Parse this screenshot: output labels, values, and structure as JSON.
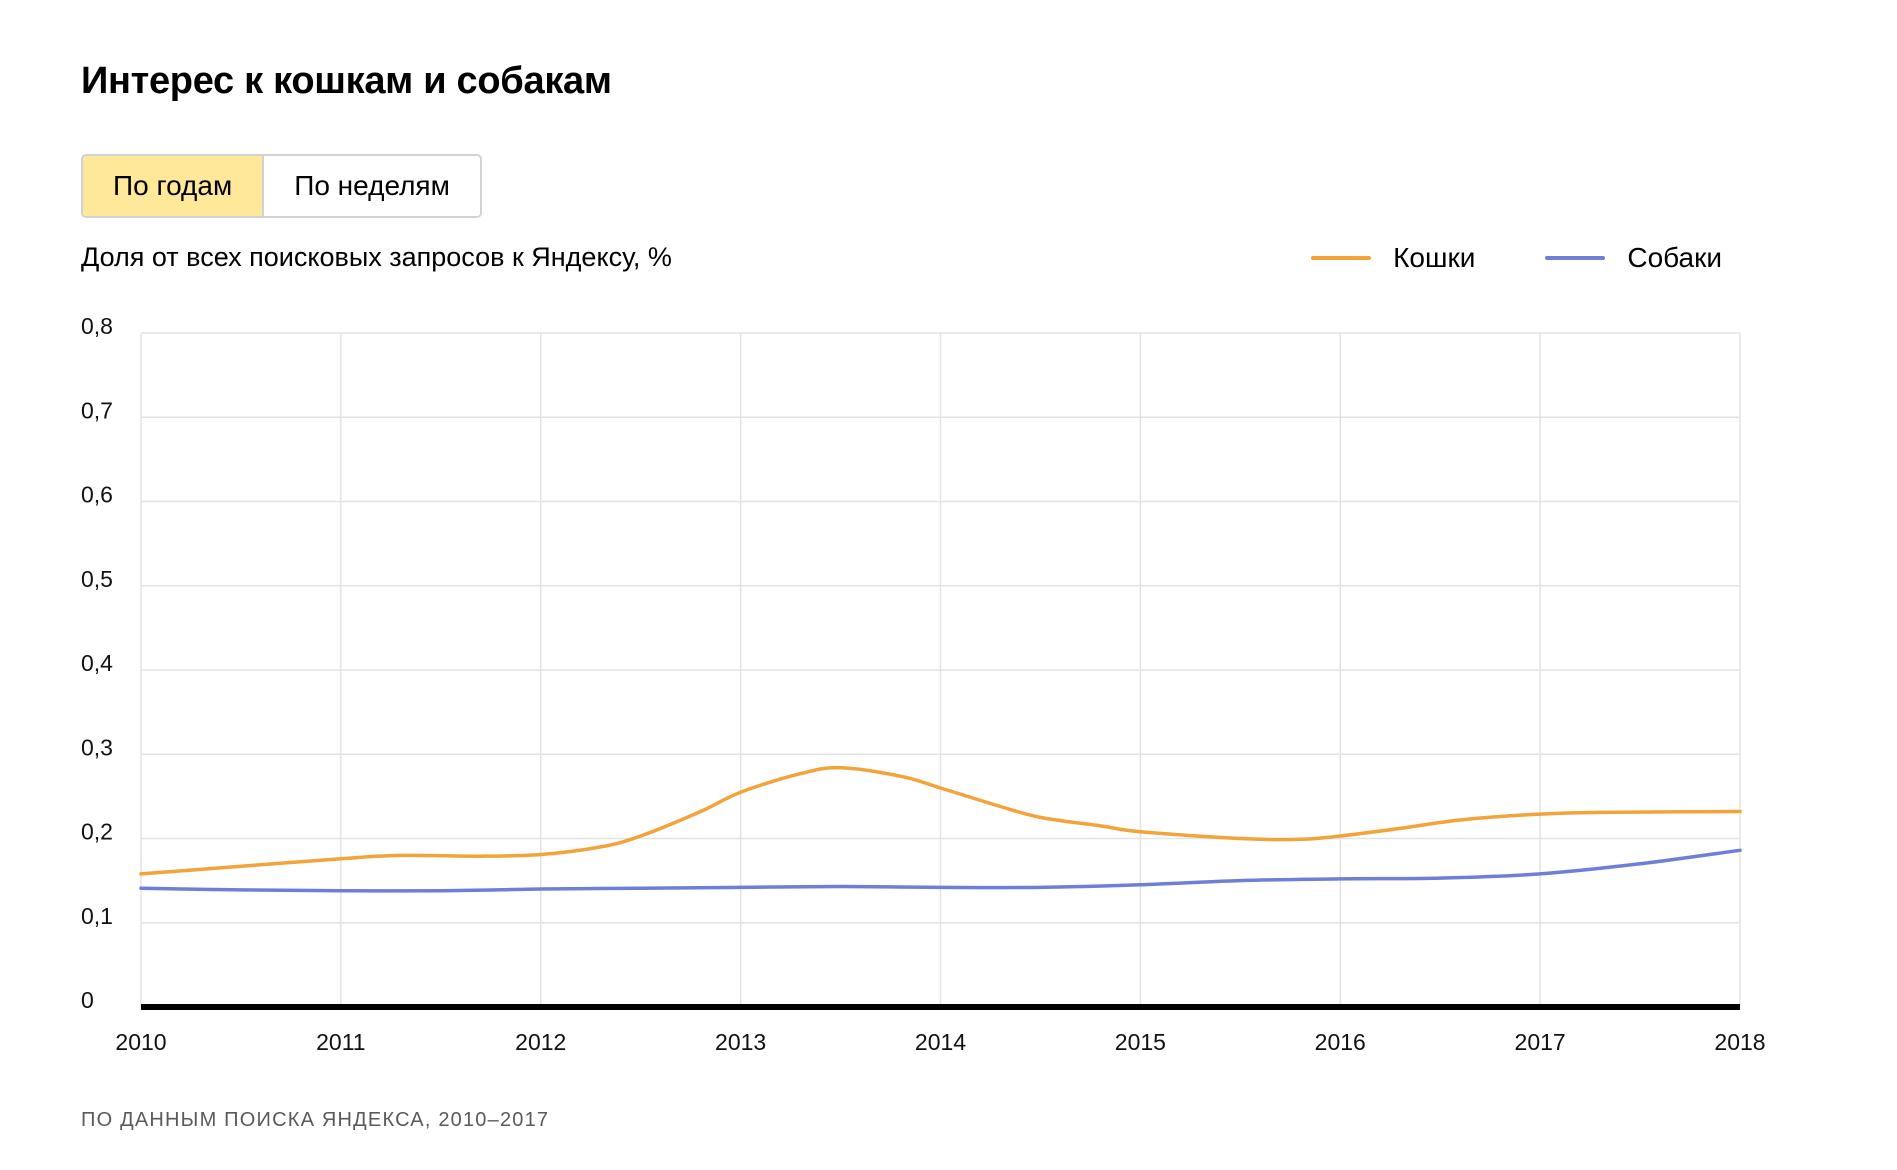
{
  "title": "Интерес к кошкам и собакам",
  "toggle": {
    "by_years": "По годам",
    "by_weeks": "По неделям"
  },
  "footnote": "ПО ДАННЫМ ПОИСКА ЯНДЕКСА, 2010–2017",
  "colors": {
    "cats": "#f2a33a",
    "dogs": "#6f7fd8",
    "active_toggle": "#ffe89a",
    "grid": "#e3e3e3",
    "axis": "#000000"
  },
  "chart_data": {
    "type": "line",
    "title": "Интерес к кошкам и собакам",
    "ylabel": "Доля от всех поисковых запросов к Яндексу, %",
    "xlabel": "",
    "x_ticks": [
      "2010",
      "2011",
      "2012",
      "2013",
      "2014",
      "2015",
      "2016",
      "2017",
      "2018"
    ],
    "y_ticks": [
      "0",
      "0,1",
      "0,2",
      "0,3",
      "0,4",
      "0,5",
      "0,6",
      "0,7",
      "0,8"
    ],
    "xlim": [
      2010,
      2018
    ],
    "ylim": [
      0,
      0.8
    ],
    "grid": true,
    "legend_position": "top-right",
    "series": [
      {
        "name": "Кошки",
        "color": "#f2a33a",
        "points": [
          [
            2010,
            0.158
          ],
          [
            2010.5,
            0.167
          ],
          [
            2011,
            0.176
          ],
          [
            2011.3,
            0.18
          ],
          [
            2011.7,
            0.179
          ],
          [
            2012,
            0.181
          ],
          [
            2012.3,
            0.19
          ],
          [
            2012.5,
            0.203
          ],
          [
            2012.8,
            0.232
          ],
          [
            2013,
            0.255
          ],
          [
            2013.3,
            0.277
          ],
          [
            2013.5,
            0.284
          ],
          [
            2013.8,
            0.274
          ],
          [
            2014,
            0.26
          ],
          [
            2014.3,
            0.238
          ],
          [
            2014.5,
            0.225
          ],
          [
            2014.8,
            0.215
          ],
          [
            2015,
            0.208
          ],
          [
            2015.5,
            0.2
          ],
          [
            2015.8,
            0.199
          ],
          [
            2016,
            0.203
          ],
          [
            2016.3,
            0.212
          ],
          [
            2016.6,
            0.222
          ],
          [
            2017,
            0.229
          ],
          [
            2017.3,
            0.231
          ],
          [
            2018,
            0.232
          ]
        ]
      },
      {
        "name": "Собаки",
        "color": "#6f7fd8",
        "points": [
          [
            2010,
            0.141
          ],
          [
            2010.5,
            0.139
          ],
          [
            2011,
            0.138
          ],
          [
            2011.5,
            0.138
          ],
          [
            2012,
            0.14
          ],
          [
            2012.5,
            0.141
          ],
          [
            2013,
            0.142
          ],
          [
            2013.5,
            0.143
          ],
          [
            2014,
            0.142
          ],
          [
            2014.5,
            0.142
          ],
          [
            2015,
            0.145
          ],
          [
            2015.5,
            0.15
          ],
          [
            2016,
            0.152
          ],
          [
            2016.5,
            0.153
          ],
          [
            2017,
            0.158
          ],
          [
            2017.5,
            0.17
          ],
          [
            2018,
            0.186
          ]
        ]
      }
    ]
  }
}
